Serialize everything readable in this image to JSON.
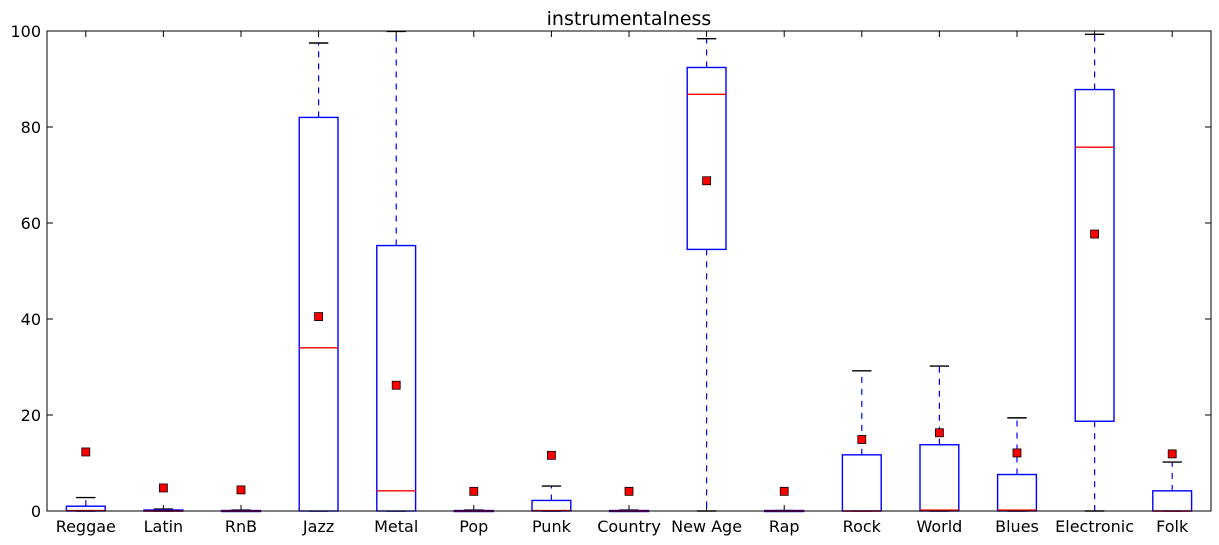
{
  "chart_data": {
    "type": "boxplot",
    "title": "instrumentalness",
    "xlabel": "",
    "ylabel": "",
    "ylim": [
      0,
      100
    ],
    "yticks": [
      0,
      20,
      40,
      60,
      80,
      100
    ],
    "grid": false,
    "legend": "none",
    "colors": {
      "box": "#0000ff",
      "median": "#ff0000",
      "mean_marker": "#ff0000",
      "whisker": "#0000ff",
      "cap": "#000000"
    },
    "categories": [
      "Reggae",
      "Latin",
      "RnB",
      "Jazz",
      "Metal",
      "Pop",
      "Punk",
      "Country",
      "New Age",
      "Rap",
      "Rock",
      "World",
      "Blues",
      "Electronic",
      "Folk"
    ],
    "boxes": [
      {
        "name": "Reggae",
        "whislo": 0,
        "q1": 0,
        "median": 0.1,
        "q3": 1.0,
        "whishi": 2.8,
        "mean": 12.3
      },
      {
        "name": "Latin",
        "whislo": 0,
        "q1": 0,
        "median": 0,
        "q3": 0.2,
        "whishi": 0.4,
        "mean": 4.8
      },
      {
        "name": "RnB",
        "whislo": 0,
        "q1": 0,
        "median": 0,
        "q3": 0.1,
        "whishi": 0.2,
        "mean": 4.4
      },
      {
        "name": "Jazz",
        "whislo": 0,
        "q1": 0,
        "median": 34.0,
        "q3": 82.0,
        "whishi": 97.5,
        "mean": 40.5
      },
      {
        "name": "Metal",
        "whislo": 0,
        "q1": 0,
        "median": 4.2,
        "q3": 55.3,
        "whishi": 99.9,
        "mean": 26.2
      },
      {
        "name": "Pop",
        "whislo": 0,
        "q1": 0,
        "median": 0,
        "q3": 0.1,
        "whishi": 0.2,
        "mean": 4.1
      },
      {
        "name": "Punk",
        "whislo": 0,
        "q1": 0,
        "median": 0.1,
        "q3": 2.2,
        "whishi": 5.2,
        "mean": 11.6
      },
      {
        "name": "Country",
        "whislo": 0,
        "q1": 0,
        "median": 0,
        "q3": 0.1,
        "whishi": 0.2,
        "mean": 4.1
      },
      {
        "name": "New Age",
        "whislo": 0,
        "q1": 54.5,
        "median": 86.8,
        "q3": 92.4,
        "whishi": 98.4,
        "mean": 68.8
      },
      {
        "name": "Rap",
        "whislo": 0,
        "q1": 0,
        "median": 0,
        "q3": 0.1,
        "whishi": 0.1,
        "mean": 4.1
      },
      {
        "name": "Rock",
        "whislo": 0,
        "q1": 0,
        "median": 0,
        "q3": 11.7,
        "whishi": 29.2,
        "mean": 14.9
      },
      {
        "name": "World",
        "whislo": 0,
        "q1": 0,
        "median": 0.2,
        "q3": 13.8,
        "whishi": 30.2,
        "mean": 16.3
      },
      {
        "name": "Blues",
        "whislo": 0,
        "q1": 0,
        "median": 0.2,
        "q3": 7.6,
        "whishi": 19.4,
        "mean": 12.1
      },
      {
        "name": "Electronic",
        "whislo": 0,
        "q1": 18.7,
        "median": 75.8,
        "q3": 87.8,
        "whishi": 99.3,
        "mean": 57.7
      },
      {
        "name": "Folk",
        "whislo": 0,
        "q1": 0,
        "median": 0,
        "q3": 4.2,
        "whishi": 10.2,
        "mean": 11.9
      }
    ]
  }
}
